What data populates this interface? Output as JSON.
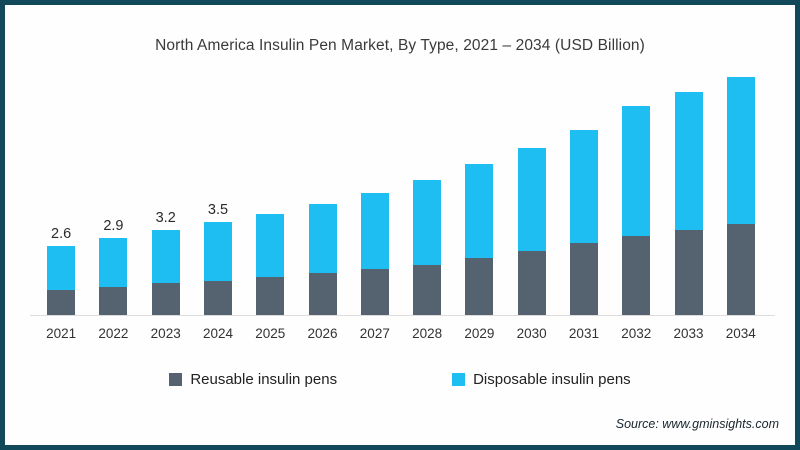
{
  "colors": {
    "frame_border": "#11485a",
    "reusable": "#556371",
    "disposable": "#1ebdf2",
    "axis_line": "#dcdcdc"
  },
  "source_note": "Source: www.gminsights.com",
  "chart_data": {
    "type": "bar",
    "stacked": true,
    "title": "North America Insulin Pen Market, By Type, 2021 – 2034 (USD Billion)",
    "xlabel": "",
    "ylabel": "",
    "ylim": [
      0,
      9.5
    ],
    "grid": false,
    "legend_position": "bottom",
    "categories": [
      "2021",
      "2022",
      "2023",
      "2024",
      "2025",
      "2026",
      "2027",
      "2028",
      "2029",
      "2030",
      "2031",
      "2032",
      "2033",
      "2034"
    ],
    "series": [
      {
        "name": "Reusable insulin pens",
        "color": "#556371",
        "values": [
          0.95,
          1.05,
          1.2,
          1.3,
          1.45,
          1.6,
          1.75,
          1.9,
          2.15,
          2.4,
          2.7,
          3.0,
          3.2,
          3.45
        ]
      },
      {
        "name": "Disposable insulin pens",
        "color": "#1ebdf2",
        "values": [
          1.65,
          1.85,
          2.0,
          2.2,
          2.35,
          2.6,
          2.85,
          3.2,
          3.55,
          3.9,
          4.3,
          4.9,
          5.2,
          5.55
        ]
      }
    ],
    "totals": [
      2.6,
      2.9,
      3.2,
      3.5,
      3.8,
      4.2,
      4.6,
      5.1,
      5.7,
      6.3,
      7.0,
      7.9,
      8.4,
      9.0
    ],
    "bar_labels": [
      "2.6",
      "2.9",
      "3.2",
      "3.5",
      "",
      "",
      "",
      "",
      "",
      "",
      "",
      "",
      "",
      ""
    ]
  }
}
